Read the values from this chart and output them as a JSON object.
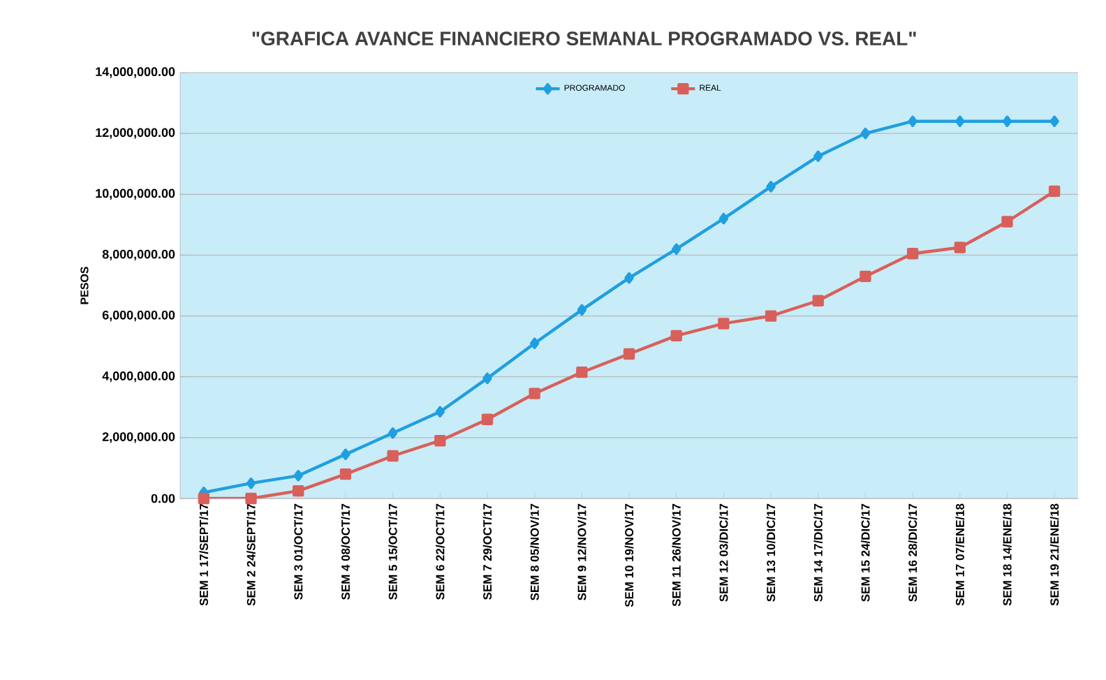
{
  "chart_data": {
    "type": "line",
    "title": "\"GRAFICA AVANCE FINANCIERO  SEMANAL PROGRAMADO VS. REAL\"",
    "ylabel": "PESOS",
    "categories": [
      "SEM 1  17/SEPT/17",
      "SEM 2  24/SEPT/17",
      "SEM 3  01/OCT/17",
      "SEM 4  08/OCT/17",
      "SEM 5  15/OCT/17",
      "SEM 6  22/OCT/17",
      "SEM 7  29/OCT/17",
      "SEM 8  05/NOV/17",
      "SEM 9  12/NOV/17",
      "SEM 10  19/NOV/17",
      "SEM 11  26/NOV/17",
      "SEM 12  03/DIC/17",
      "SEM 13  10/DIC/17",
      "SEM 14  17/DIC/17",
      "SEM 15  24/DIC/17",
      "SEM 16  28/DIC/17",
      "SEM 17  07/ENE/18",
      "SEM 18  14/ENE/18",
      "SEM 19  21/ENE/18"
    ],
    "series": [
      {
        "name": "PROGRAMADO",
        "color": "#1f9fe0",
        "marker": "diamond",
        "values": [
          200000,
          500000,
          750000,
          1450000,
          2150000,
          2850000,
          3950000,
          5100000,
          6200000,
          7250000,
          8200000,
          9200000,
          10250000,
          11250000,
          12000000,
          12400000,
          12400000,
          12400000,
          12400000
        ]
      },
      {
        "name": "REAL",
        "color": "#d9605a",
        "marker": "square",
        "values": [
          0,
          0,
          250000,
          800000,
          1400000,
          1900000,
          2600000,
          3450000,
          4150000,
          4750000,
          5350000,
          5750000,
          6000000,
          6500000,
          7300000,
          8050000,
          8250000,
          9100000,
          10100000
        ]
      }
    ],
    "ylim": [
      0,
      14000000
    ],
    "yticks": [
      {
        "value": 0,
        "label": "0.00"
      },
      {
        "value": 2000000,
        "label": "2,000,000.00"
      },
      {
        "value": 4000000,
        "label": "4,000,000.00"
      },
      {
        "value": 6000000,
        "label": "6,000,000.00"
      },
      {
        "value": 8000000,
        "label": "8,000,000.00"
      },
      {
        "value": 10000000,
        "label": "10,000,000.00"
      },
      {
        "value": 12000000,
        "label": "12,000,000.00"
      },
      {
        "value": 14000000,
        "label": "14,000,000.00"
      }
    ],
    "grid": "y",
    "legend": "top",
    "line_style": "solid"
  }
}
